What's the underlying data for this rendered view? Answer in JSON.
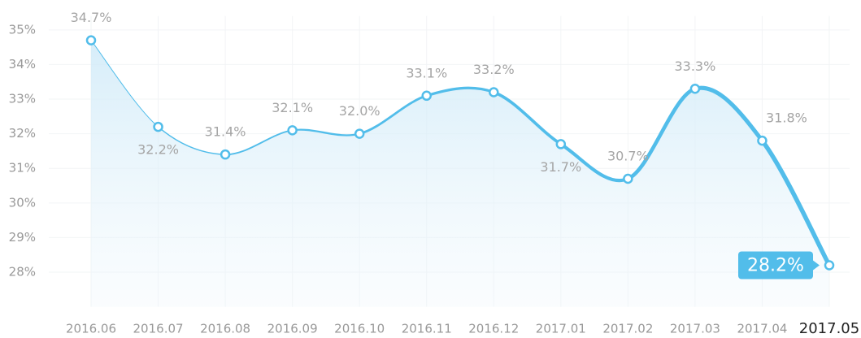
{
  "chart_data": {
    "type": "line",
    "categories": [
      "2016.06",
      "2016.07",
      "2016.08",
      "2016.09",
      "2016.10",
      "2016.11",
      "2016.12",
      "2017.01",
      "2017.02",
      "2017.03",
      "2017.04",
      "2017.05"
    ],
    "series": [
      {
        "color": "#52bdea",
        "values": [
          34.7,
          32.2,
          31.4,
          32.1,
          32.0,
          33.1,
          33.2,
          31.7,
          30.7,
          33.3,
          31.8,
          28.2
        ],
        "value_labels": [
          "34.7%",
          "32.2%",
          "31.4%",
          "32.1%",
          "32.0%",
          "33.1%",
          "33.2%",
          "31.7%",
          "30.7%",
          "33.3%",
          "31.8%",
          "28.2%"
        ]
      }
    ],
    "ylim": [
      27,
      35.4
    ],
    "yticks": [
      {
        "value": 28,
        "label": "28%"
      },
      {
        "value": 29,
        "label": "29%"
      },
      {
        "value": 30,
        "label": "30%"
      },
      {
        "value": 31,
        "label": "31%"
      },
      {
        "value": 32,
        "label": "32%"
      },
      {
        "value": 33,
        "label": "33%"
      },
      {
        "value": 34,
        "label": "34%"
      },
      {
        "value": 35,
        "label": "35%"
      }
    ],
    "grid": true
  }
}
